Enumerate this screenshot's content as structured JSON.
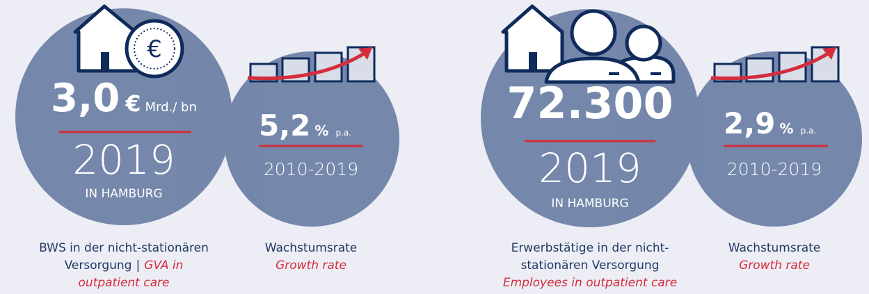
{
  "panels": [
    {
      "value": "3,0",
      "unit": "€",
      "unit_suffix": "Mrd./ bn",
      "year": "2019",
      "location": "IN HAMBURG",
      "growth": {
        "value": "5,2",
        "unit": "%",
        "suffix": "p.a.",
        "period": "2010-2019"
      },
      "caption": {
        "german": [
          "BWS in der nicht-stationären",
          "Versorgung"
        ],
        "separator": "|",
        "english": [
          "GVA in",
          "outpatient care"
        ]
      },
      "growth_caption": {
        "german": "Wachstumsrate",
        "english": "Growth rate"
      }
    },
    {
      "value": "72.300",
      "year": "2019",
      "location": "IN HAMBURG",
      "growth": {
        "value": "2,9",
        "unit": "%",
        "suffix": "p.a.",
        "period": "2010-2019"
      },
      "caption": {
        "german": [
          "Erwerbstätige in der nicht-",
          "stationären Versorgung"
        ],
        "english": [
          "Employees in outpatient care"
        ]
      },
      "growth_caption": {
        "german": "Wachstumsrate",
        "english": "Growth rate"
      }
    }
  ]
}
